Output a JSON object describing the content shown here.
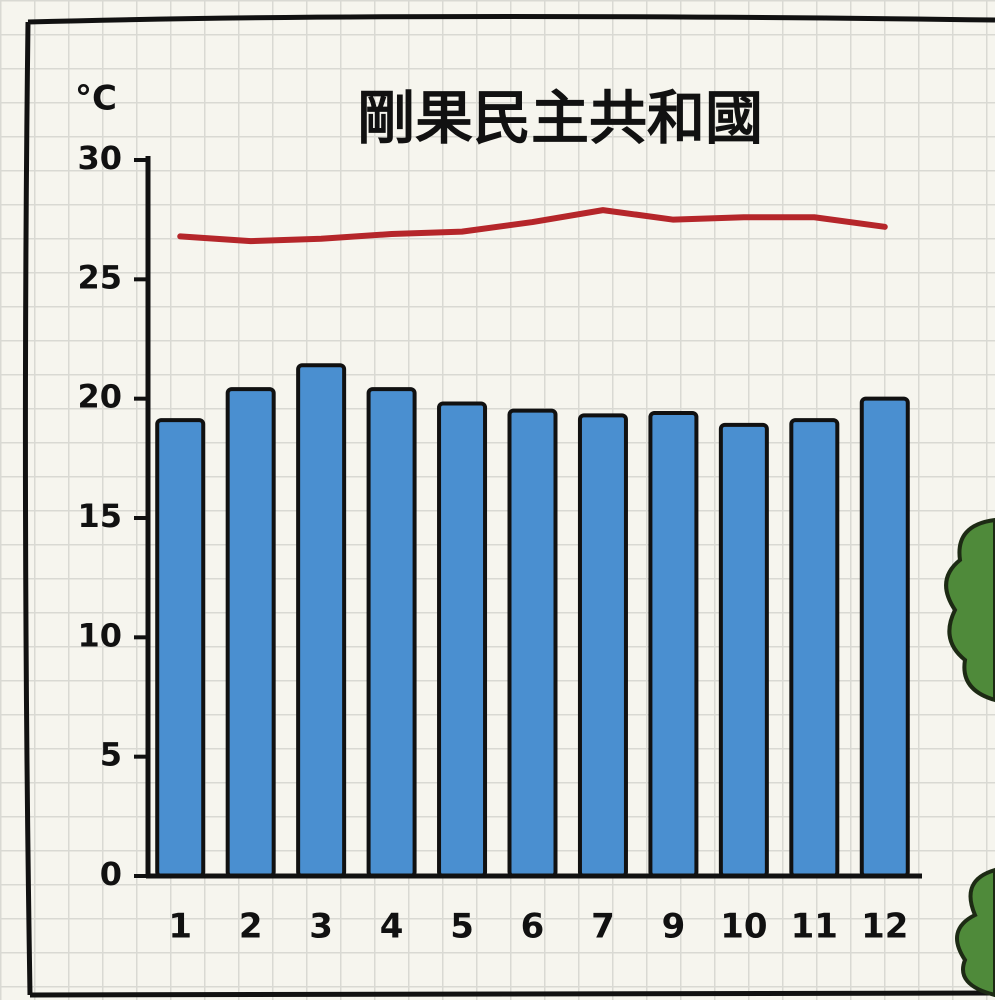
{
  "chart_data": {
    "type": "bar",
    "title": "剛果民主共和國",
    "y_label": "°C",
    "categories": [
      "1",
      "2",
      "3",
      "4",
      "5",
      "6",
      "7",
      "9",
      "10",
      "11",
      "12"
    ],
    "series": [
      {
        "type": "bar",
        "color": "#4a8fd0",
        "values": [
          19.1,
          20.4,
          21.4,
          20.4,
          19.8,
          19.5,
          19.3,
          19.4,
          18.9,
          19.1,
          20.0
        ]
      },
      {
        "type": "line",
        "color": "#b5262a",
        "values": [
          26.8,
          26.6,
          26.7,
          26.9,
          27.0,
          27.4,
          27.9,
          27.5,
          27.6,
          27.6,
          27.2
        ]
      }
    ],
    "ylim": [
      0,
      30
    ],
    "yticks": [
      0,
      5,
      10,
      15,
      20,
      25,
      30
    ]
  }
}
